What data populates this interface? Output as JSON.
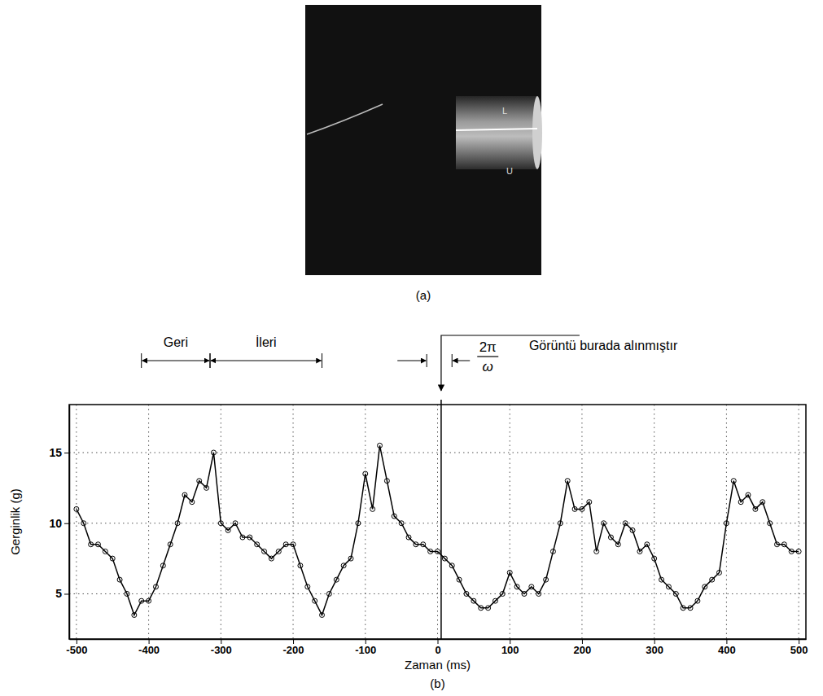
{
  "photo": {
    "caption": "(a)",
    "labels": [
      "L",
      "U"
    ]
  },
  "chart_data": {
    "type": "line",
    "caption": "(b)",
    "x_label": "Zaman (ms)",
    "y_label": "Gerginlik (g)",
    "xlim": [
      -510,
      510
    ],
    "ylim": [
      1.8,
      18.4
    ],
    "xticks": [
      -500,
      -400,
      -300,
      -200,
      -100,
      0,
      100,
      200,
      300,
      400,
      500
    ],
    "yticks": [
      5,
      10,
      15
    ],
    "grid": true,
    "x": [
      -500,
      -490,
      -480,
      -470,
      -460,
      -450,
      -440,
      -430,
      -420,
      -410,
      -400,
      -390,
      -380,
      -370,
      -360,
      -350,
      -340,
      -330,
      -320,
      -310,
      -300,
      -290,
      -280,
      -270,
      -260,
      -250,
      -240,
      -230,
      -220,
      -210,
      -200,
      -190,
      -180,
      -170,
      -160,
      -150,
      -140,
      -130,
      -120,
      -110,
      -100,
      -90,
      -80,
      -70,
      -60,
      -50,
      -40,
      -30,
      -20,
      -10,
      0,
      10,
      20,
      30,
      40,
      50,
      60,
      70,
      80,
      90,
      100,
      110,
      120,
      130,
      140,
      150,
      160,
      170,
      180,
      190,
      200,
      210,
      220,
      230,
      240,
      250,
      260,
      270,
      280,
      290,
      300,
      310,
      320,
      330,
      340,
      350,
      360,
      370,
      380,
      390,
      400,
      410,
      420,
      430,
      440,
      450,
      460,
      470,
      480,
      490,
      500
    ],
    "series": [
      {
        "color": "#000000",
        "marker": "circle",
        "values": [
          11,
          10,
          8.5,
          8.5,
          8,
          7.5,
          6,
          5,
          3.5,
          4.5,
          4.5,
          5.5,
          7,
          8.5,
          10,
          12,
          11.5,
          13,
          12.5,
          15,
          10,
          9.5,
          10,
          9,
          9,
          8.5,
          8,
          7.5,
          8,
          8.5,
          8.5,
          7,
          5.5,
          4.5,
          3.5,
          5,
          6,
          7,
          7.5,
          10,
          13.5,
          11,
          15.5,
          13,
          10.5,
          10,
          9,
          8.5,
          8.5,
          8,
          8,
          7.5,
          7,
          6,
          5,
          4.5,
          4,
          4,
          4.5,
          5,
          6.5,
          5.5,
          5,
          5.5,
          5,
          6,
          8,
          10,
          13,
          11,
          11,
          11.5,
          8,
          10,
          9,
          8.5,
          10,
          9.5,
          8,
          8.5,
          7.5,
          6,
          5.5,
          5,
          4,
          4,
          4.5,
          5.5,
          6,
          6.5,
          10,
          13,
          11.5,
          12,
          11,
          11.5,
          10,
          8.5,
          8.5,
          8,
          8
        ]
      }
    ],
    "annotations": [
      {
        "text": "Geri",
        "x": [
          -410,
          -315
        ]
      },
      {
        "text": "İleri",
        "x": [
          -315,
          -160
        ]
      },
      {
        "fraction": [
          "2π",
          "ω"
        ],
        "x": [
          -15,
          20
        ]
      },
      {
        "text": "Görüntü burada alınmıştır",
        "x": 5
      }
    ]
  }
}
